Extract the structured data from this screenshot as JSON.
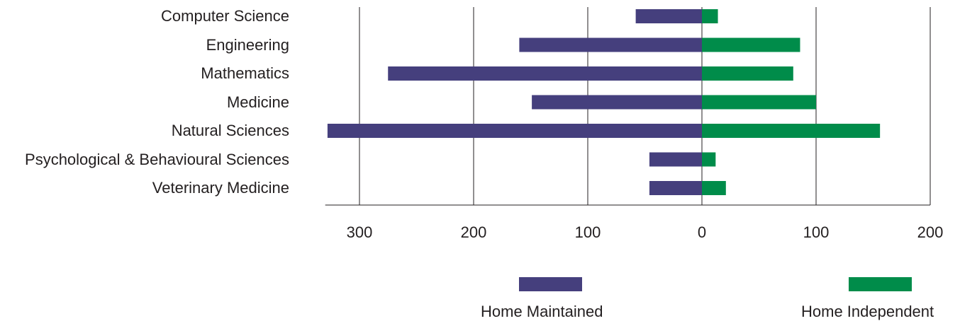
{
  "colors": {
    "home_maintained": "#453f7d",
    "home_independent": "#008c4a",
    "grid": "#231f20"
  },
  "chart_data": {
    "type": "bar",
    "orientation": "horizontal-diverging",
    "categories": [
      "Computer Science",
      "Engineering",
      "Mathematics",
      "Medicine",
      "Natural Sciences",
      "Psychological & Behavioural Sciences",
      "Veterinary Medicine"
    ],
    "series": [
      {
        "name": "Home Maintained",
        "direction": "left",
        "values": [
          58,
          160,
          275,
          149,
          328,
          46,
          46
        ]
      },
      {
        "name": "Home Independent",
        "direction": "right",
        "values": [
          14,
          86,
          80,
          100,
          156,
          12,
          21
        ]
      }
    ],
    "ticks": [
      {
        "value": -300,
        "label": "300"
      },
      {
        "value": -200,
        "label": "200"
      },
      {
        "value": -100,
        "label": "100"
      },
      {
        "value": 0,
        "label": "0"
      },
      {
        "value": 100,
        "label": "100"
      },
      {
        "value": 200,
        "label": "200"
      }
    ],
    "xlim": [
      -330,
      200
    ],
    "grid": true,
    "legend": {
      "position": "bottom"
    },
    "title": "",
    "xlabel": "",
    "ylabel": ""
  }
}
